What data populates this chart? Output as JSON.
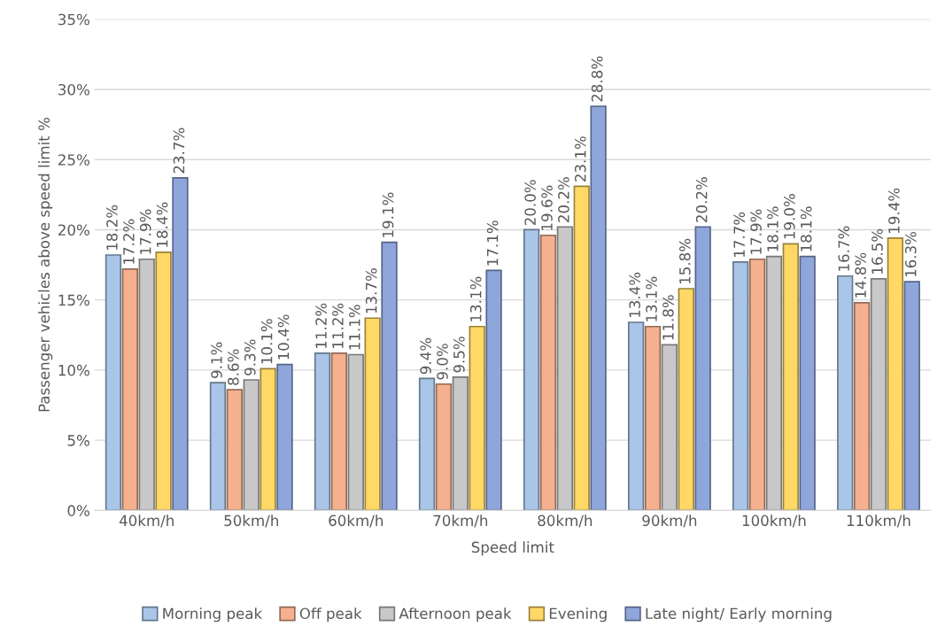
{
  "chart_data": {
    "type": "bar",
    "xlabel": "Speed limit",
    "ylabel": "Passenger vehicles above speed limit %",
    "categories": [
      "40km/h",
      "50km/h",
      "60km/h",
      "70km/h",
      "80km/h",
      "90km/h",
      "100km/h",
      "110km/h"
    ],
    "series": [
      {
        "name": "Morning peak",
        "color": "#a9c6e8",
        "values": [
          18.2,
          9.1,
          11.2,
          9.4,
          20.0,
          13.4,
          17.7,
          16.7
        ],
        "value_labels": [
          "18.2%",
          "9.1%",
          "11.2%",
          "9.4%",
          "20.0%",
          "13.4%",
          "17.7%",
          "16.7%"
        ]
      },
      {
        "name": "Off peak",
        "color": "#f4b08f",
        "values": [
          17.2,
          8.6,
          11.2,
          9.0,
          19.6,
          13.1,
          17.9,
          14.8
        ],
        "value_labels": [
          "17.2%",
          "8.6%",
          "11.2%",
          "9.0%",
          "19.6%",
          "13.1%",
          "17.9%",
          "14.8%"
        ]
      },
      {
        "name": "Afternoon peak",
        "color": "#c8c8c8",
        "values": [
          17.9,
          9.3,
          11.1,
          9.5,
          20.2,
          11.8,
          18.1,
          16.5
        ],
        "value_labels": [
          "17.9%",
          "9.3%",
          "11.1%",
          "9.5%",
          "20.2%",
          "11.8%",
          "18.1%",
          "16.5%"
        ]
      },
      {
        "name": "Evening",
        "color": "#ffd866",
        "values": [
          18.4,
          10.1,
          13.7,
          13.1,
          23.1,
          15.8,
          19.0,
          19.4
        ],
        "value_labels": [
          "18.4%",
          "10.1%",
          "13.7%",
          "13.1%",
          "23.1%",
          "15.8%",
          "19.0%",
          "19.4%"
        ]
      },
      {
        "name": "Late night/ Early morning",
        "color": "#8ea6dc",
        "values": [
          23.7,
          10.4,
          19.1,
          17.1,
          28.8,
          20.2,
          18.1,
          16.3
        ],
        "value_labels": [
          "23.7%",
          "10.4%",
          "19.1%",
          "17.1%",
          "28.8%",
          "20.2%",
          "18.1%",
          "16.3%"
        ]
      }
    ],
    "ylim": [
      0,
      35
    ],
    "yticks": [
      {
        "value": 0,
        "label": "0%"
      },
      {
        "value": 5,
        "label": "5%"
      },
      {
        "value": 10,
        "label": "10%"
      },
      {
        "value": 15,
        "label": "15%"
      },
      {
        "value": 20,
        "label": "20%"
      },
      {
        "value": 25,
        "label": "25%"
      },
      {
        "value": 30,
        "label": "30%"
      },
      {
        "value": 35,
        "label": "35%"
      }
    ],
    "grid": "y",
    "legend": "bottom"
  }
}
